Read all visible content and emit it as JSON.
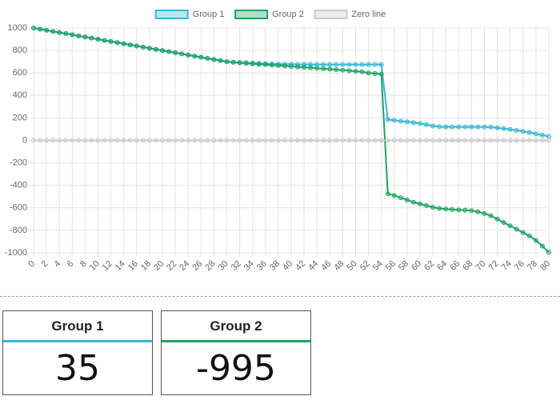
{
  "chart_data": {
    "type": "line",
    "x": [
      0,
      1,
      2,
      3,
      4,
      5,
      6,
      7,
      8,
      9,
      10,
      11,
      12,
      13,
      14,
      15,
      16,
      17,
      18,
      19,
      20,
      21,
      22,
      23,
      24,
      25,
      26,
      27,
      28,
      29,
      30,
      31,
      32,
      33,
      34,
      35,
      36,
      37,
      38,
      39,
      40,
      41,
      42,
      43,
      44,
      45,
      46,
      47,
      48,
      49,
      50,
      51,
      52,
      53,
      54,
      55,
      56,
      57,
      58,
      59,
      60,
      61,
      62,
      63,
      64,
      65,
      66,
      67,
      68,
      69,
      70,
      71,
      72,
      73,
      74,
      75,
      76,
      77,
      78,
      79,
      80
    ],
    "series": [
      {
        "name": "Group 1",
        "color": "#36b9d8",
        "values": [
          1000,
          990,
          980,
          970,
          960,
          950,
          940,
          930,
          920,
          910,
          900,
          890,
          880,
          870,
          860,
          850,
          840,
          830,
          820,
          810,
          800,
          790,
          780,
          770,
          760,
          750,
          740,
          730,
          720,
          710,
          700,
          697,
          694,
          691,
          688,
          685,
          683,
          681,
          679,
          678,
          677,
          676,
          676,
          675,
          675,
          675,
          675,
          675,
          675,
          675,
          675,
          675,
          675,
          675,
          675,
          185,
          180,
          172,
          165,
          158,
          150,
          140,
          128,
          122,
          120,
          120,
          120,
          120,
          120,
          120,
          120,
          118,
          112,
          105,
          98,
          90,
          80,
          70,
          58,
          47,
          35
        ]
      },
      {
        "name": "Group 2",
        "color": "#1fa463",
        "values": [
          1000,
          990,
          980,
          970,
          960,
          950,
          940,
          930,
          920,
          910,
          900,
          890,
          880,
          870,
          860,
          850,
          840,
          830,
          820,
          810,
          800,
          790,
          780,
          770,
          760,
          750,
          740,
          730,
          720,
          710,
          700,
          695,
          690,
          686,
          682,
          678,
          674,
          670,
          666,
          662,
          658,
          654,
          650,
          646,
          642,
          638,
          634,
          630,
          625,
          620,
          615,
          610,
          600,
          595,
          590,
          -475,
          -490,
          -510,
          -530,
          -550,
          -565,
          -580,
          -595,
          -605,
          -610,
          -615,
          -618,
          -620,
          -625,
          -635,
          -650,
          -670,
          -700,
          -730,
          -760,
          -790,
          -820,
          -850,
          -890,
          -940,
          -995
        ]
      },
      {
        "name": "Zero line",
        "color": "#cccccc",
        "values": [
          0,
          0,
          0,
          0,
          0,
          0,
          0,
          0,
          0,
          0,
          0,
          0,
          0,
          0,
          0,
          0,
          0,
          0,
          0,
          0,
          0,
          0,
          0,
          0,
          0,
          0,
          0,
          0,
          0,
          0,
          0,
          0,
          0,
          0,
          0,
          0,
          0,
          0,
          0,
          0,
          0,
          0,
          0,
          0,
          0,
          0,
          0,
          0,
          0,
          0,
          0,
          0,
          0,
          0,
          0,
          0,
          0,
          0,
          0,
          0,
          0,
          0,
          0,
          0,
          0,
          0,
          0,
          0,
          0,
          0,
          0,
          0,
          0,
          0,
          0,
          0,
          0,
          0,
          0,
          0,
          0
        ]
      }
    ],
    "xlim": [
      0,
      80
    ],
    "xticks": [
      0,
      2,
      4,
      6,
      8,
      10,
      12,
      14,
      16,
      18,
      20,
      22,
      24,
      26,
      28,
      30,
      32,
      34,
      36,
      38,
      40,
      42,
      44,
      46,
      48,
      50,
      52,
      54,
      56,
      58,
      60,
      62,
      64,
      66,
      68,
      70,
      72,
      74,
      76,
      78,
      80
    ],
    "ylim": [
      -1000,
      1000
    ],
    "yticks": [
      -1000,
      -800,
      -600,
      -400,
      -200,
      0,
      200,
      400,
      600,
      800,
      1000
    ],
    "grid": true,
    "legend": "top"
  }
}
